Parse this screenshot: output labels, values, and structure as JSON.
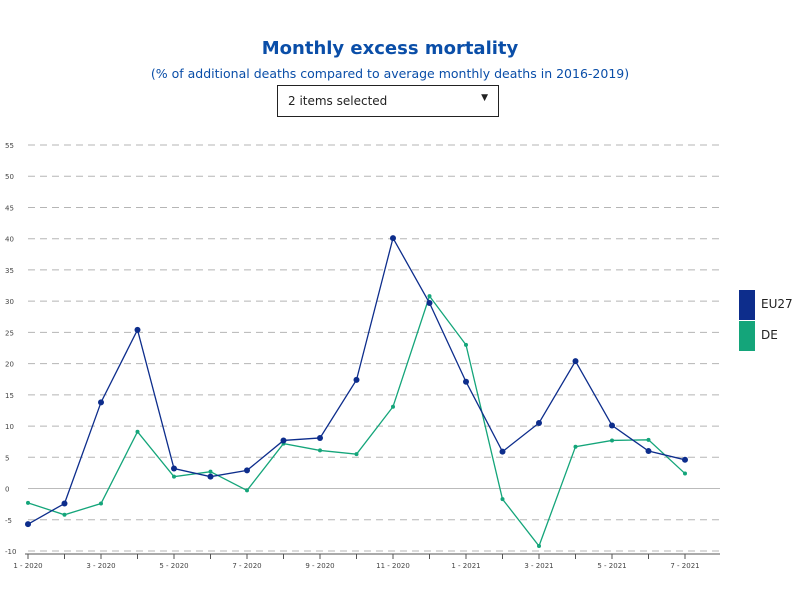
{
  "header": {
    "title": "Monthly excess mortality",
    "subtitle": "(% of additional deaths compared to average monthly deaths in 2016-2019)"
  },
  "selector": {
    "label": "2 items selected"
  },
  "legend": [
    {
      "name": "EU27",
      "color": "#0d2d8c"
    },
    {
      "name": "DE",
      "color": "#14a57a"
    }
  ],
  "chart_data": {
    "type": "line",
    "title": "Monthly excess mortality",
    "subtitle": "(% of additional deaths compared to average monthly deaths in 2016-2019)",
    "x": [
      "1 - 2020",
      "2 - 2020",
      "3 - 2020",
      "4 - 2020",
      "5 - 2020",
      "6 - 2020",
      "7 - 2020",
      "8 - 2020",
      "9 - 2020",
      "10 - 2020",
      "11 - 2020",
      "12 - 2020",
      "1 - 2021",
      "2 - 2021",
      "3 - 2021",
      "4 - 2021",
      "5 - 2021",
      "6 - 2021",
      "7 - 2021"
    ],
    "xtick_labels": [
      "1 - 2020",
      "",
      "3 - 2020",
      "",
      "5 - 2020",
      "",
      "7 - 2020",
      "",
      "9 - 2020",
      "",
      "11 - 2020",
      "",
      "1 - 2021",
      "",
      "3 - 2021",
      "",
      "5 - 2021",
      "",
      "7 - 2021"
    ],
    "yticks": [
      -10,
      -5,
      0,
      5,
      10,
      15,
      20,
      25,
      30,
      35,
      40,
      45,
      50,
      55
    ],
    "ylim": [
      -10,
      55
    ],
    "grid": true,
    "legend_position": "right",
    "series": [
      {
        "name": "EU27",
        "color": "#0d2d8c",
        "values": [
          -5.7,
          -2.4,
          13.8,
          25.4,
          3.2,
          1.9,
          2.9,
          7.7,
          8.1,
          17.4,
          40.1,
          29.7,
          17.1,
          5.9,
          10.5,
          20.4,
          10.1,
          6.0,
          4.6
        ]
      },
      {
        "name": "DE",
        "color": "#14a57a",
        "values": [
          -2.3,
          -4.2,
          -2.4,
          9.1,
          1.9,
          2.7,
          -0.3,
          7.2,
          6.1,
          5.5,
          13.1,
          30.8,
          23.0,
          -1.7,
          -9.2,
          6.7,
          7.7,
          7.8,
          2.4
        ]
      }
    ]
  }
}
